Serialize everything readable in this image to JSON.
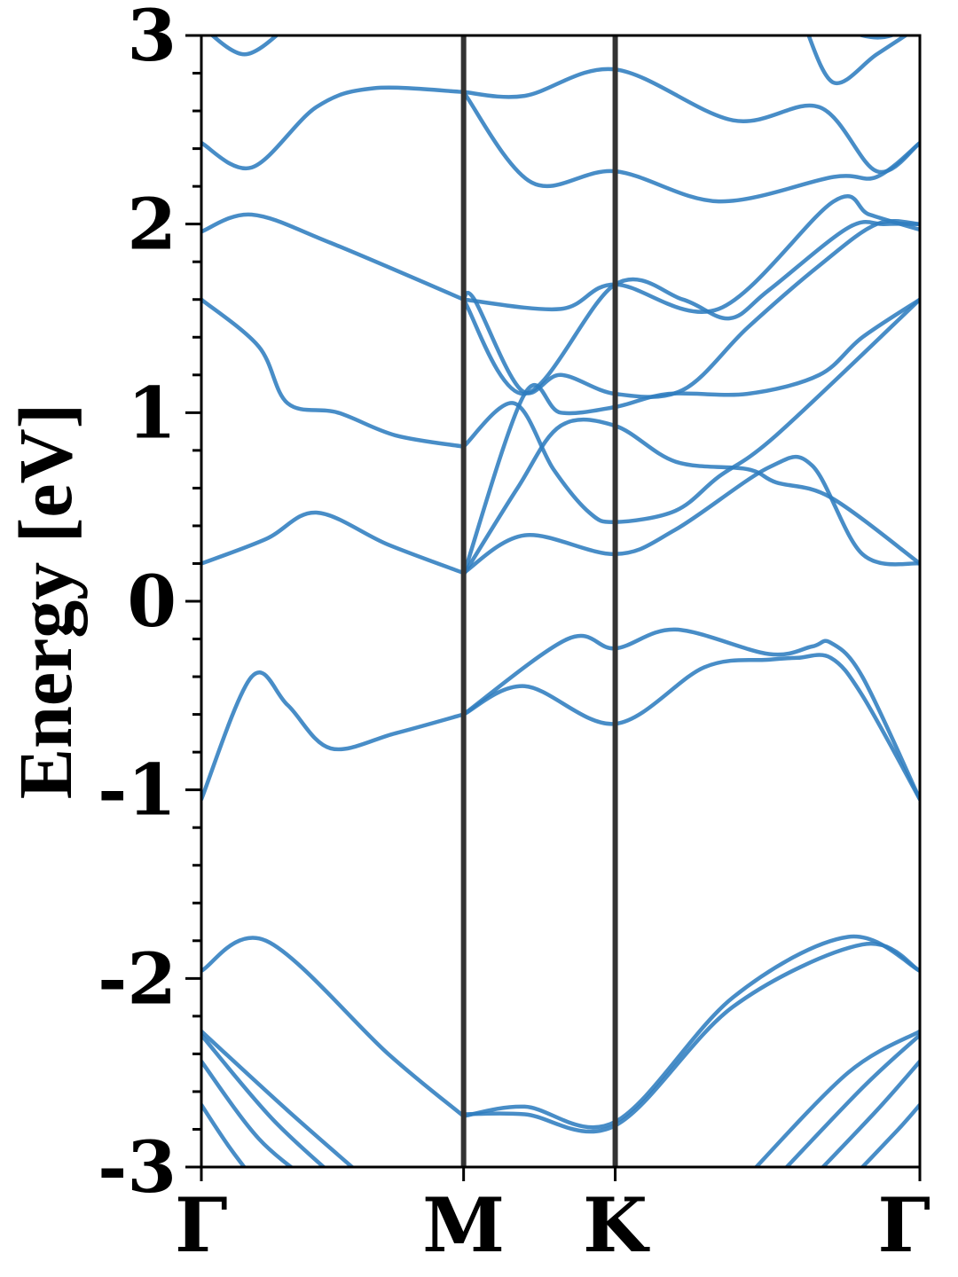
{
  "chart_data": {
    "type": "line",
    "title": "",
    "xlabel": "",
    "ylabel": "Energy [eV]",
    "ylim": [
      -3,
      3
    ],
    "xlim": [
      0,
      1
    ],
    "x_ticks": [
      {
        "label": "Γ",
        "x": 0.0
      },
      {
        "label": "M",
        "x": 0.365
      },
      {
        "label": "K",
        "x": 0.576
      },
      {
        "label": "Γ",
        "x": 1.0
      }
    ],
    "y_ticks": [
      {
        "label": "3",
        "value": 3
      },
      {
        "label": "2",
        "value": 2
      },
      {
        "label": "1",
        "value": 1
      },
      {
        "label": "0",
        "value": 0
      },
      {
        "label": "-1",
        "value": -1
      },
      {
        "label": "-2",
        "value": -2
      },
      {
        "label": "-3",
        "value": -3
      }
    ],
    "y_minor_step": 0.2,
    "high_symmetry_lines": [
      0.365,
      0.576
    ],
    "grid": false,
    "legend": "none",
    "series_color": "#2f7dbf",
    "vline_color": "#333333",
    "series": [
      {
        "x": [
          0,
          0.07,
          0.12,
          0.18,
          0.27,
          0.365
        ],
        "y": [
          -1.05,
          -0.4,
          -0.55,
          -0.78,
          -0.7,
          -0.6
        ]
      },
      {
        "x": [
          0.365,
          0.45,
          0.576,
          0.7,
          0.79,
          0.83,
          0.876,
          0.92,
          1.0
        ],
        "y": [
          -0.6,
          -0.45,
          -0.65,
          -0.35,
          -0.31,
          -0.3,
          -0.3,
          -0.5,
          -1.05
        ]
      },
      {
        "x": [
          0.365,
          0.51,
          0.576,
          0.66,
          0.79,
          0.85,
          0.876,
          0.92,
          1.0
        ],
        "y": [
          -0.6,
          -0.2,
          -0.25,
          -0.15,
          -0.28,
          -0.24,
          -0.22,
          -0.4,
          -1.05
        ]
      },
      {
        "x": [
          0,
          0.09,
          0.16,
          0.26,
          0.365
        ],
        "y": [
          0.2,
          0.33,
          0.47,
          0.3,
          0.15
        ]
      },
      {
        "x": [
          0.365,
          0.45,
          0.576,
          0.66,
          0.79,
          0.85,
          0.92,
          1.0
        ],
        "y": [
          0.15,
          0.35,
          0.25,
          0.38,
          0.71,
          0.72,
          0.25,
          0.2
        ]
      },
      {
        "x": [
          0.365,
          0.44,
          0.5,
          0.576,
          0.66,
          0.76,
          0.8,
          0.876,
          1.0
        ],
        "y": [
          0.14,
          0.6,
          0.93,
          0.93,
          0.74,
          0.7,
          0.63,
          0.55,
          0.2
        ]
      },
      {
        "x": [
          0,
          0.08,
          0.12,
          0.19,
          0.27,
          0.365
        ],
        "y": [
          1.6,
          1.35,
          1.05,
          1.0,
          0.88,
          0.82
        ]
      },
      {
        "x": [
          0.365,
          0.435,
          0.49,
          0.54,
          0.576,
          0.66,
          0.72,
          0.8,
          1.0
        ],
        "y": [
          0.82,
          1.05,
          0.7,
          0.47,
          0.42,
          0.48,
          0.66,
          0.88,
          1.6
        ]
      },
      {
        "x": [
          0.365,
          0.45,
          0.5,
          0.576,
          0.65,
          0.76,
          0.86,
          0.92,
          1.0
        ],
        "y": [
          0.14,
          1.1,
          1.0,
          1.03,
          1.1,
          1.1,
          1.2,
          1.4,
          1.6
        ]
      },
      {
        "x": [
          0.365,
          0.38,
          0.445,
          0.5,
          0.576,
          0.67,
          0.76,
          0.86,
          0.94,
          1.0
        ],
        "y": [
          1.6,
          1.6,
          1.12,
          1.2,
          1.1,
          1.12,
          1.45,
          1.78,
          2.0,
          2.0
        ]
      },
      {
        "x": [
          0.365,
          0.45,
          0.576,
          0.67,
          0.735,
          0.79,
          0.9,
          0.95,
          1.0
        ],
        "y": [
          1.6,
          1.1,
          1.68,
          1.6,
          1.5,
          1.65,
          1.98,
          2.0,
          2.0
        ]
      },
      {
        "x": [
          0,
          0.07,
          0.18,
          0.365
        ],
        "y": [
          1.96,
          2.05,
          1.9,
          1.6
        ]
      },
      {
        "x": [
          0.365,
          0.5,
          0.576,
          0.72,
          0.88,
          0.93,
          1.0
        ],
        "y": [
          1.6,
          1.55,
          1.68,
          1.55,
          2.12,
          2.05,
          1.97
        ]
      },
      {
        "x": [
          0,
          0.07,
          0.16,
          0.24,
          0.365
        ],
        "y": [
          2.43,
          2.3,
          2.62,
          2.72,
          2.7
        ]
      },
      {
        "x": [
          0.365,
          0.46,
          0.576,
          0.72,
          0.88,
          0.94,
          1.0
        ],
        "y": [
          2.7,
          2.22,
          2.28,
          2.12,
          2.25,
          2.25,
          2.43
        ]
      },
      {
        "x": [
          0.365,
          0.45,
          0.576,
          0.74,
          0.86,
          0.94,
          1.0
        ],
        "y": [
          2.7,
          2.68,
          2.82,
          2.55,
          2.62,
          2.28,
          2.43
        ]
      },
      {
        "x": [
          0,
          0.06,
          0.12
        ],
        "y": [
          3.05,
          2.9,
          3.05
        ]
      },
      {
        "x": [
          0.84,
          0.88,
          0.94,
          1.0
        ],
        "y": [
          3.05,
          2.75,
          2.9,
          3.05
        ]
      },
      {
        "x": [
          0.88,
          0.92,
          0.96,
          1.0
        ],
        "y": [
          3.08,
          3.0,
          3.0,
          3.1
        ]
      },
      {
        "x": [
          0,
          0.09,
          0.26,
          0.365
        ],
        "y": [
          -1.96,
          -1.8,
          -2.4,
          -2.73
        ]
      },
      {
        "x": [
          0.365,
          0.45,
          0.576,
          0.74,
          0.9,
          1.0
        ],
        "y": [
          -2.73,
          -2.68,
          -2.76,
          -2.1,
          -1.78,
          -1.96
        ]
      },
      {
        "x": [
          0.365,
          0.45,
          0.576,
          0.74,
          0.92,
          1.0
        ],
        "y": [
          -2.72,
          -2.72,
          -2.78,
          -2.15,
          -1.82,
          -1.96
        ]
      },
      {
        "x": [
          0,
          0.12,
          0.24
        ],
        "y": [
          -2.28,
          -2.7,
          -3.1
        ]
      },
      {
        "x": [
          0,
          0.1,
          0.2
        ],
        "y": [
          -2.3,
          -2.75,
          -3.1
        ]
      },
      {
        "x": [
          0,
          0.08,
          0.16
        ],
        "y": [
          -2.44,
          -2.85,
          -3.1
        ]
      },
      {
        "x": [
          0,
          0.04,
          0.09
        ],
        "y": [
          -2.67,
          -2.9,
          -3.15
        ]
      },
      {
        "x": [
          0.76,
          0.9,
          1.0
        ],
        "y": [
          -3.05,
          -2.5,
          -2.28
        ]
      },
      {
        "x": [
          0.79,
          0.92,
          1.0
        ],
        "y": [
          -3.1,
          -2.58,
          -2.3
        ]
      },
      {
        "x": [
          0.84,
          0.94,
          1.0
        ],
        "y": [
          -3.1,
          -2.7,
          -2.44
        ]
      },
      {
        "x": [
          0.89,
          0.97,
          1.0
        ],
        "y": [
          -3.12,
          -2.8,
          -2.67
        ]
      }
    ]
  }
}
